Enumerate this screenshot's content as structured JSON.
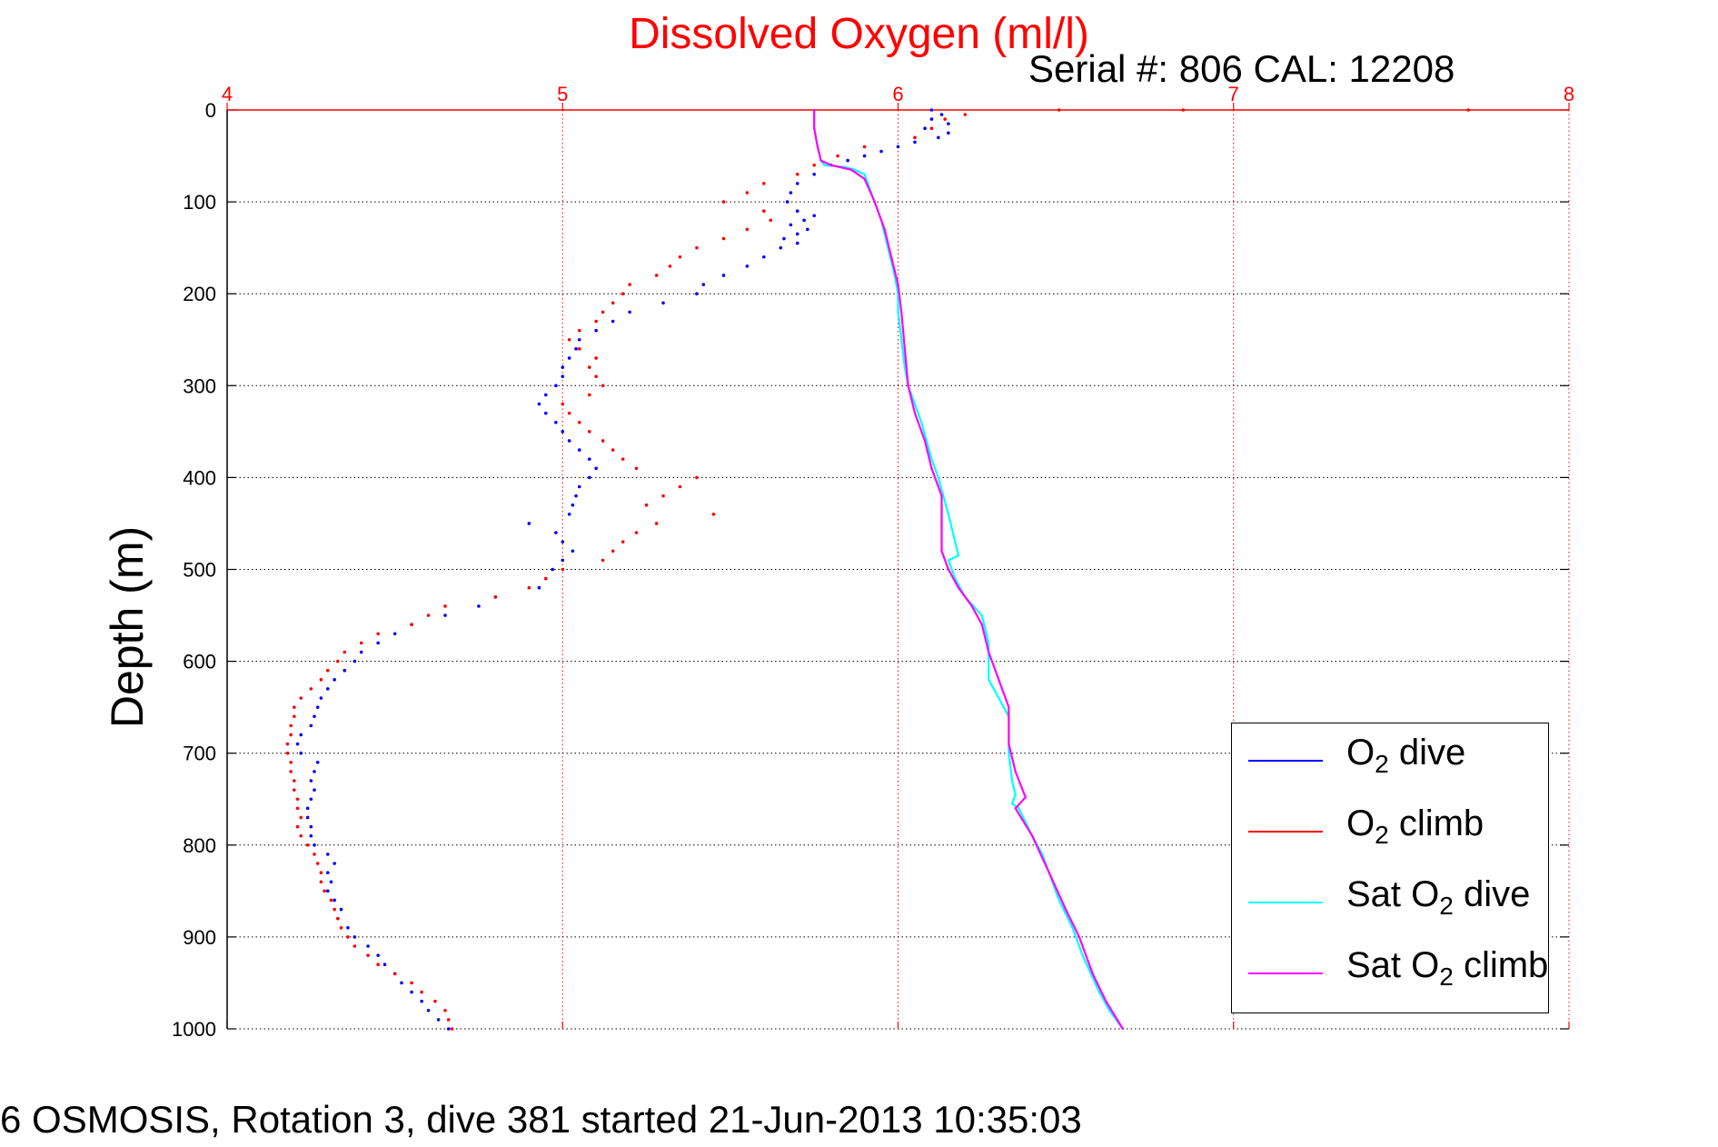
{
  "title": "Dissolved Oxygen (ml/l)",
  "serial_text": "Serial #: 806  CAL: 12208",
  "footer": "6 OSMOSIS, Rotation 3, dive 381 started 21-Jun-2013 10:35:03",
  "legend": {
    "o2_dive_prefix": "O",
    "o2_dive_sub": "2",
    "o2_dive_suffix": " dive",
    "o2_climb_prefix": "O",
    "o2_climb_sub": "2",
    "o2_climb_suffix": " climb",
    "sat_dive_prefix": "Sat O",
    "sat_dive_sub": "2",
    "sat_dive_suffix": " dive",
    "sat_climb_prefix": "Sat O",
    "sat_climb_sub": "2",
    "sat_climb_suffix": " climb"
  },
  "colors": {
    "o2_dive": "#0000ff",
    "o2_climb": "#ff0000",
    "sat_dive": "#00ffff",
    "sat_climb": "#ff00ff",
    "top_axis": "#ff0000",
    "grid_x": "#ff0000",
    "grid_y": "#000000"
  },
  "chart_data": {
    "type": "scatter",
    "title": "Dissolved Oxygen (ml/l)",
    "xlabel": "",
    "ylabel": "Depth (m)",
    "xlim": [
      4,
      8
    ],
    "ylim": [
      0,
      1000
    ],
    "y_reversed": true,
    "x_axis_position": "top",
    "x_ticks": [
      4,
      5,
      6,
      7,
      8
    ],
    "y_ticks": [
      0,
      100,
      200,
      300,
      400,
      500,
      600,
      700,
      800,
      900,
      1000
    ],
    "grid": true,
    "legend_position": "bottom-right",
    "series": [
      {
        "name": "O2 dive",
        "style": "points",
        "points": [
          [
            6.1,
            0
          ],
          [
            6.13,
            5
          ],
          [
            6.1,
            10
          ],
          [
            6.15,
            15
          ],
          [
            6.08,
            20
          ],
          [
            6.15,
            25
          ],
          [
            6.12,
            30
          ],
          [
            6.05,
            35
          ],
          [
            6.0,
            40
          ],
          [
            5.95,
            45
          ],
          [
            5.9,
            50
          ],
          [
            5.85,
            55
          ],
          [
            5.8,
            60
          ],
          [
            5.75,
            70
          ],
          [
            5.7,
            80
          ],
          [
            5.68,
            90
          ],
          [
            5.67,
            100
          ],
          [
            5.7,
            110
          ],
          [
            5.75,
            115
          ],
          [
            5.72,
            120
          ],
          [
            5.68,
            125
          ],
          [
            5.73,
            130
          ],
          [
            5.7,
            135
          ],
          [
            5.66,
            140
          ],
          [
            5.7,
            145
          ],
          [
            5.65,
            150
          ],
          [
            5.6,
            160
          ],
          [
            5.55,
            170
          ],
          [
            5.48,
            180
          ],
          [
            5.42,
            190
          ],
          [
            5.4,
            200
          ],
          [
            5.3,
            210
          ],
          [
            5.2,
            220
          ],
          [
            5.15,
            230
          ],
          [
            5.1,
            240
          ],
          [
            5.05,
            250
          ],
          [
            5.04,
            260
          ],
          [
            5.02,
            270
          ],
          [
            5.0,
            280
          ],
          [
            5.0,
            290
          ],
          [
            4.98,
            300
          ],
          [
            4.95,
            310
          ],
          [
            4.93,
            320
          ],
          [
            4.95,
            330
          ],
          [
            4.98,
            340
          ],
          [
            5.0,
            350
          ],
          [
            5.02,
            360
          ],
          [
            5.05,
            370
          ],
          [
            5.08,
            380
          ],
          [
            5.1,
            390
          ],
          [
            5.08,
            400
          ],
          [
            5.05,
            410
          ],
          [
            5.04,
            420
          ],
          [
            5.03,
            430
          ],
          [
            5.02,
            440
          ],
          [
            4.9,
            450
          ],
          [
            4.98,
            460
          ],
          [
            5.0,
            470
          ],
          [
            5.03,
            480
          ],
          [
            5.0,
            490
          ],
          [
            4.97,
            500
          ],
          [
            4.95,
            510
          ],
          [
            4.93,
            520
          ],
          [
            4.8,
            530
          ],
          [
            4.75,
            540
          ],
          [
            4.65,
            550
          ],
          [
            4.55,
            560
          ],
          [
            4.5,
            570
          ],
          [
            4.45,
            580
          ],
          [
            4.4,
            590
          ],
          [
            4.38,
            600
          ],
          [
            4.35,
            610
          ],
          [
            4.32,
            620
          ],
          [
            4.3,
            630
          ],
          [
            4.28,
            640
          ],
          [
            4.27,
            650
          ],
          [
            4.26,
            660
          ],
          [
            4.25,
            670
          ],
          [
            4.22,
            680
          ],
          [
            4.21,
            690
          ],
          [
            4.22,
            700
          ],
          [
            4.27,
            710
          ],
          [
            4.26,
            720
          ],
          [
            4.25,
            730
          ],
          [
            4.26,
            740
          ],
          [
            4.25,
            750
          ],
          [
            4.24,
            760
          ],
          [
            4.24,
            770
          ],
          [
            4.25,
            780
          ],
          [
            4.25,
            790
          ],
          [
            4.26,
            800
          ],
          [
            4.3,
            810
          ],
          [
            4.32,
            820
          ],
          [
            4.3,
            830
          ],
          [
            4.31,
            840
          ],
          [
            4.3,
            850
          ],
          [
            4.32,
            860
          ],
          [
            4.34,
            870
          ],
          [
            4.33,
            880
          ],
          [
            4.36,
            890
          ],
          [
            4.38,
            900
          ],
          [
            4.42,
            910
          ],
          [
            4.45,
            920
          ],
          [
            4.47,
            930
          ],
          [
            4.5,
            940
          ],
          [
            4.52,
            950
          ],
          [
            4.55,
            960
          ],
          [
            4.58,
            970
          ],
          [
            4.6,
            980
          ],
          [
            4.63,
            990
          ],
          [
            4.66,
            1000
          ]
        ]
      },
      {
        "name": "O2 climb",
        "style": "points",
        "points": [
          [
            7.7,
            0
          ],
          [
            6.85,
            0
          ],
          [
            6.48,
            0
          ],
          [
            6.2,
            5
          ],
          [
            6.14,
            10
          ],
          [
            6.1,
            20
          ],
          [
            6.05,
            30
          ],
          [
            5.9,
            40
          ],
          [
            5.82,
            50
          ],
          [
            5.75,
            60
          ],
          [
            5.7,
            70
          ],
          [
            5.6,
            80
          ],
          [
            5.55,
            90
          ],
          [
            5.48,
            100
          ],
          [
            5.6,
            110
          ],
          [
            5.62,
            120
          ],
          [
            5.55,
            130
          ],
          [
            5.48,
            140
          ],
          [
            5.4,
            150
          ],
          [
            5.35,
            160
          ],
          [
            5.32,
            170
          ],
          [
            5.28,
            180
          ],
          [
            5.2,
            190
          ],
          [
            5.18,
            200
          ],
          [
            5.15,
            210
          ],
          [
            5.12,
            220
          ],
          [
            5.1,
            230
          ],
          [
            5.05,
            240
          ],
          [
            5.02,
            250
          ],
          [
            5.05,
            260
          ],
          [
            5.1,
            270
          ],
          [
            5.08,
            280
          ],
          [
            5.1,
            290
          ],
          [
            5.12,
            300
          ],
          [
            5.08,
            310
          ],
          [
            5.0,
            320
          ],
          [
            5.02,
            330
          ],
          [
            5.05,
            340
          ],
          [
            5.08,
            350
          ],
          [
            5.12,
            360
          ],
          [
            5.15,
            370
          ],
          [
            5.18,
            380
          ],
          [
            5.22,
            390
          ],
          [
            5.4,
            400
          ],
          [
            5.35,
            410
          ],
          [
            5.3,
            420
          ],
          [
            5.25,
            430
          ],
          [
            5.45,
            440
          ],
          [
            5.28,
            450
          ],
          [
            5.22,
            460
          ],
          [
            5.18,
            470
          ],
          [
            5.15,
            480
          ],
          [
            5.12,
            490
          ],
          [
            5.0,
            500
          ],
          [
            4.95,
            510
          ],
          [
            4.9,
            520
          ],
          [
            4.8,
            530
          ],
          [
            4.65,
            540
          ],
          [
            4.6,
            550
          ],
          [
            4.55,
            560
          ],
          [
            4.45,
            570
          ],
          [
            4.4,
            580
          ],
          [
            4.35,
            590
          ],
          [
            4.33,
            600
          ],
          [
            4.3,
            610
          ],
          [
            4.28,
            620
          ],
          [
            4.25,
            630
          ],
          [
            4.22,
            640
          ],
          [
            4.2,
            650
          ],
          [
            4.2,
            660
          ],
          [
            4.19,
            670
          ],
          [
            4.19,
            680
          ],
          [
            4.18,
            690
          ],
          [
            4.18,
            700
          ],
          [
            4.19,
            710
          ],
          [
            4.19,
            720
          ],
          [
            4.2,
            730
          ],
          [
            4.2,
            740
          ],
          [
            4.21,
            750
          ],
          [
            4.21,
            760
          ],
          [
            4.22,
            770
          ],
          [
            4.21,
            780
          ],
          [
            4.22,
            790
          ],
          [
            4.24,
            800
          ],
          [
            4.26,
            810
          ],
          [
            4.27,
            820
          ],
          [
            4.28,
            830
          ],
          [
            4.28,
            840
          ],
          [
            4.29,
            850
          ],
          [
            4.31,
            860
          ],
          [
            4.32,
            870
          ],
          [
            4.33,
            880
          ],
          [
            4.34,
            890
          ],
          [
            4.36,
            900
          ],
          [
            4.38,
            910
          ],
          [
            4.42,
            920
          ],
          [
            4.45,
            930
          ],
          [
            4.5,
            940
          ],
          [
            4.55,
            950
          ],
          [
            4.58,
            960
          ],
          [
            4.62,
            970
          ],
          [
            4.65,
            980
          ],
          [
            4.66,
            990
          ],
          [
            4.67,
            1000
          ]
        ]
      },
      {
        "name": "Sat O2 dive",
        "style": "line",
        "points": [
          [
            5.75,
            0
          ],
          [
            5.75,
            20
          ],
          [
            5.76,
            40
          ],
          [
            5.77,
            55
          ],
          [
            5.78,
            60
          ],
          [
            5.84,
            62
          ],
          [
            5.87,
            65
          ],
          [
            5.9,
            70
          ],
          [
            5.92,
            90
          ],
          [
            5.93,
            100
          ],
          [
            5.95,
            120
          ],
          [
            5.97,
            150
          ],
          [
            5.99,
            180
          ],
          [
            6.0,
            200
          ],
          [
            6.0,
            220
          ],
          [
            6.01,
            250
          ],
          [
            6.02,
            280
          ],
          [
            6.03,
            300
          ],
          [
            6.07,
            340
          ],
          [
            6.1,
            380
          ],
          [
            6.12,
            400
          ],
          [
            6.15,
            440
          ],
          [
            6.17,
            470
          ],
          [
            6.18,
            485
          ],
          [
            6.15,
            490
          ],
          [
            6.17,
            510
          ],
          [
            6.2,
            530
          ],
          [
            6.25,
            550
          ],
          [
            6.27,
            580
          ],
          [
            6.27,
            620
          ],
          [
            6.3,
            640
          ],
          [
            6.33,
            660
          ],
          [
            6.33,
            700
          ],
          [
            6.34,
            730
          ],
          [
            6.35,
            745
          ],
          [
            6.34,
            755
          ],
          [
            6.36,
            760
          ],
          [
            6.4,
            790
          ],
          [
            6.43,
            810
          ],
          [
            6.45,
            830
          ],
          [
            6.48,
            860
          ],
          [
            6.52,
            890
          ],
          [
            6.55,
            920
          ],
          [
            6.6,
            960
          ],
          [
            6.63,
            980
          ],
          [
            6.67,
            1000
          ]
        ]
      },
      {
        "name": "Sat O2 climb",
        "style": "line",
        "points": [
          [
            5.75,
            0
          ],
          [
            5.75,
            20
          ],
          [
            5.76,
            40
          ],
          [
            5.77,
            55
          ],
          [
            5.8,
            60
          ],
          [
            5.86,
            65
          ],
          [
            5.9,
            75
          ],
          [
            5.93,
            100
          ],
          [
            5.96,
            130
          ],
          [
            5.98,
            160
          ],
          [
            6.0,
            190
          ],
          [
            6.01,
            220
          ],
          [
            6.02,
            260
          ],
          [
            6.03,
            300
          ],
          [
            6.05,
            330
          ],
          [
            6.08,
            360
          ],
          [
            6.1,
            390
          ],
          [
            6.13,
            420
          ],
          [
            6.13,
            450
          ],
          [
            6.13,
            480
          ],
          [
            6.15,
            500
          ],
          [
            6.18,
            520
          ],
          [
            6.22,
            540
          ],
          [
            6.25,
            560
          ],
          [
            6.27,
            590
          ],
          [
            6.3,
            620
          ],
          [
            6.33,
            650
          ],
          [
            6.33,
            690
          ],
          [
            6.35,
            720
          ],
          [
            6.38,
            748
          ],
          [
            6.35,
            760
          ],
          [
            6.4,
            790
          ],
          [
            6.45,
            830
          ],
          [
            6.5,
            870
          ],
          [
            6.54,
            900
          ],
          [
            6.58,
            940
          ],
          [
            6.62,
            970
          ],
          [
            6.67,
            1000
          ]
        ]
      }
    ]
  }
}
